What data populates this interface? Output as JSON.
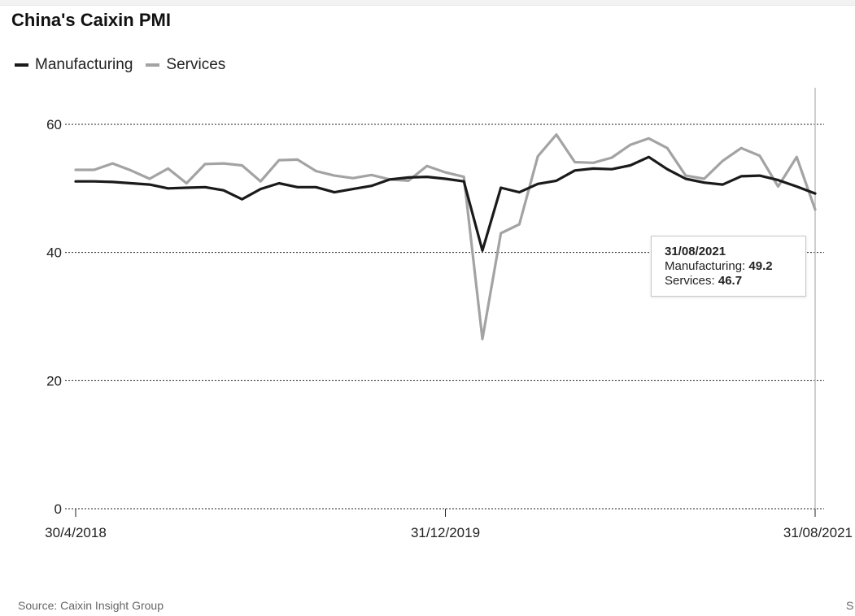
{
  "title": "China's Caixin PMI",
  "source": "Source: Caixin Insight Group",
  "source_cut": "S",
  "tooltip": {
    "date": "31/08/2021",
    "manufacturing_label": "Manufacturing: ",
    "manufacturing_value": "49.2",
    "services_label": "Services: ",
    "services_value": "46.7"
  },
  "colors": {
    "manufacturing": "#1a1a1a",
    "services": "#a3a3a3",
    "grid": "#222222",
    "crosshair": "#bdbdbd"
  },
  "chart_data": {
    "type": "line",
    "title": "China's Caixin PMI",
    "xlabel": "",
    "ylabel": "",
    "ylim": [
      0,
      65
    ],
    "yticks": [
      0,
      20,
      40,
      60
    ],
    "x_tick_labels": [
      "30/4/2018",
      "31/12/2019",
      "31/08/2021"
    ],
    "x_tick_index": [
      0,
      20,
      40
    ],
    "grid": "horizontal-dotted",
    "legend": "top-left",
    "series": [
      {
        "name": "Manufacturing",
        "color": "#1a1a1a",
        "values": [
          51.1,
          51.1,
          51.0,
          50.8,
          50.6,
          50.0,
          50.1,
          50.2,
          49.7,
          48.3,
          49.9,
          50.8,
          50.2,
          50.2,
          49.4,
          49.9,
          50.4,
          51.4,
          51.7,
          51.8,
          51.5,
          51.1,
          40.3,
          50.1,
          49.4,
          50.7,
          51.2,
          52.8,
          53.1,
          53.0,
          53.6,
          54.9,
          53.0,
          51.5,
          50.9,
          50.6,
          51.9,
          52.0,
          51.3,
          50.3,
          49.2
        ]
      },
      {
        "name": "Services",
        "color": "#a3a3a3",
        "values": [
          52.9,
          52.9,
          53.9,
          52.8,
          51.5,
          53.1,
          50.8,
          53.8,
          53.9,
          53.6,
          51.1,
          54.4,
          54.5,
          52.7,
          52.0,
          51.6,
          52.1,
          51.4,
          51.2,
          53.5,
          52.5,
          51.8,
          26.5,
          43.0,
          44.4,
          55.0,
          58.4,
          54.1,
          54.0,
          54.8,
          56.8,
          57.8,
          56.3,
          52.0,
          51.5,
          54.3,
          56.3,
          55.1,
          50.3,
          54.9,
          46.7
        ]
      }
    ]
  }
}
